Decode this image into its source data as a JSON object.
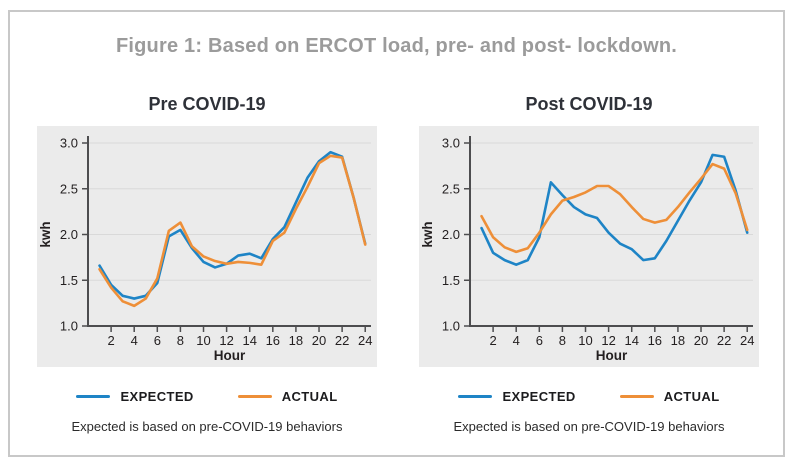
{
  "figure": {
    "title": "Figure 1: Based on ERCOT load, pre- and post- lockdown."
  },
  "colors": {
    "expected": "#1e84c6",
    "actual": "#ee8f38",
    "plot_background": "#ebebeb",
    "gridline": "#d9d9d9",
    "axis": "#4d4d4f",
    "tick_text": "#231f20",
    "figure_title_text": "#9b9b9b",
    "panel_title_text": "#2e3138",
    "frame_border": "#c8c8c8"
  },
  "footnote": "Expected is based on pre-COVID-19 behaviors",
  "chart_data": [
    {
      "type": "line",
      "title": "Pre COVID-19",
      "xlabel": "Hour",
      "ylabel": "kwh",
      "x": [
        1,
        2,
        3,
        4,
        5,
        6,
        7,
        8,
        9,
        10,
        11,
        12,
        13,
        14,
        15,
        16,
        17,
        18,
        19,
        20,
        21,
        22,
        23,
        24
      ],
      "xticks": [
        2,
        4,
        6,
        8,
        10,
        12,
        14,
        16,
        18,
        20,
        22,
        24
      ],
      "yticks": [
        1.0,
        1.5,
        2.0,
        2.5,
        3.0
      ],
      "xlim": [
        0,
        24.5
      ],
      "ylim": [
        1.0,
        3.0
      ],
      "grid": "horizontal",
      "legend_position": "bottom",
      "series": [
        {
          "name": "EXPECTED",
          "color": "#1e84c6",
          "values": [
            1.66,
            1.45,
            1.33,
            1.3,
            1.33,
            1.47,
            1.98,
            2.05,
            1.85,
            1.7,
            1.64,
            1.68,
            1.77,
            1.79,
            1.74,
            1.95,
            2.08,
            2.35,
            2.62,
            2.8,
            2.9,
            2.85,
            2.4,
            1.9
          ]
        },
        {
          "name": "ACTUAL",
          "color": "#ee8f38",
          "values": [
            1.62,
            1.42,
            1.27,
            1.22,
            1.3,
            1.52,
            2.04,
            2.13,
            1.87,
            1.76,
            1.71,
            1.68,
            1.7,
            1.69,
            1.67,
            1.93,
            2.02,
            2.28,
            2.52,
            2.78,
            2.86,
            2.84,
            2.4,
            1.89
          ]
        }
      ]
    },
    {
      "type": "line",
      "title": "Post COVID-19",
      "xlabel": "Hour",
      "ylabel": "kwh",
      "x": [
        1,
        2,
        3,
        4,
        5,
        6,
        7,
        8,
        9,
        10,
        11,
        12,
        13,
        14,
        15,
        16,
        17,
        18,
        19,
        20,
        21,
        22,
        23,
        24
      ],
      "xticks": [
        2,
        4,
        6,
        8,
        10,
        12,
        14,
        16,
        18,
        20,
        22,
        24
      ],
      "yticks": [
        1.0,
        1.5,
        2.0,
        2.5,
        3.0
      ],
      "xlim": [
        0,
        24.5
      ],
      "ylim": [
        1.0,
        3.0
      ],
      "grid": "horizontal",
      "legend_position": "bottom",
      "series": [
        {
          "name": "EXPECTED",
          "color": "#1e84c6",
          "values": [
            2.07,
            1.8,
            1.72,
            1.67,
            1.72,
            1.97,
            2.57,
            2.43,
            2.3,
            2.22,
            2.18,
            2.02,
            1.9,
            1.84,
            1.72,
            1.74,
            1.93,
            2.15,
            2.37,
            2.57,
            2.87,
            2.85,
            2.48,
            2.02
          ]
        },
        {
          "name": "ACTUAL",
          "color": "#ee8f38",
          "values": [
            2.2,
            1.97,
            1.86,
            1.81,
            1.85,
            2.02,
            2.22,
            2.37,
            2.41,
            2.46,
            2.53,
            2.53,
            2.44,
            2.3,
            2.17,
            2.13,
            2.16,
            2.3,
            2.46,
            2.61,
            2.77,
            2.72,
            2.45,
            2.05
          ]
        }
      ]
    }
  ]
}
